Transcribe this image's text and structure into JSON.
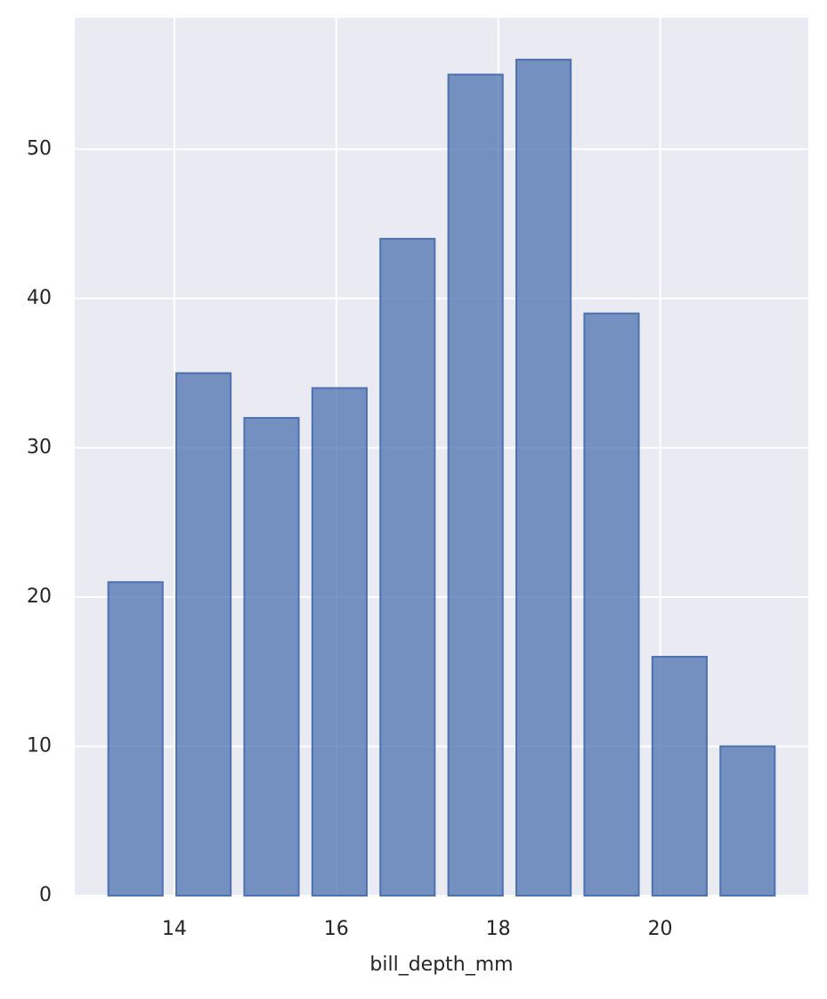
{
  "chart_data": {
    "type": "histogram",
    "x_label": "bill_depth_mm",
    "bins": [
      13.1,
      13.94,
      14.78,
      15.62,
      16.46,
      17.3,
      18.14,
      18.98,
      19.82,
      20.66,
      21.5
    ],
    "values": [
      21,
      35,
      32,
      34,
      44,
      55,
      56,
      39,
      16,
      10
    ],
    "color": "#4c72b0",
    "shrink": 0.8,
    "xlim": [
      12.77,
      21.83
    ],
    "xticks": [
      14,
      16,
      18,
      20
    ],
    "ylim": [
      0,
      58.8
    ],
    "yticks": [
      0,
      10,
      20,
      30,
      40,
      50
    ],
    "grid": true
  }
}
